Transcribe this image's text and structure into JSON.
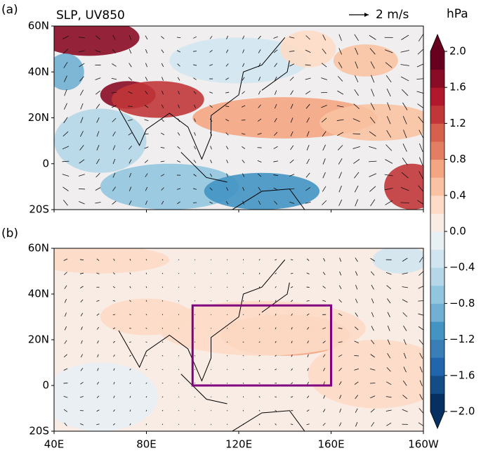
{
  "panels": [
    {
      "label": "(a)",
      "title": "SLP, UV850",
      "reference_vector": "2 m/s"
    },
    {
      "label": "(b)",
      "box": {
        "lon": [
          100,
          160
        ],
        "lat": [
          0,
          35
        ],
        "color": "#800080"
      }
    }
  ],
  "xlim": [
    40,
    200
  ],
  "ylim": [
    -20,
    60
  ],
  "lon_ticks": [
    {
      "value": 40,
      "label": "40E"
    },
    {
      "value": 80,
      "label": "80E"
    },
    {
      "value": 120,
      "label": "120E"
    },
    {
      "value": 160,
      "label": "160E"
    },
    {
      "value": 200,
      "label": "160W"
    }
  ],
  "lat_ticks": [
    {
      "value": 60,
      "label": "60N"
    },
    {
      "value": 40,
      "label": "40N"
    },
    {
      "value": 20,
      "label": "20N"
    },
    0,
    {
      "value": -20,
      "label": "20S"
    }
  ],
  "colorbar": {
    "unit": "hPa",
    "lim": [
      -2,
      2
    ],
    "ticks": [
      {
        "value": 2,
        "label": "2.0"
      },
      1.6,
      1.2,
      0.8,
      0.4,
      {
        "value": 0,
        "label": "0.0"
      },
      {
        "value": -0.4,
        "label": "−0.4"
      },
      {
        "value": -0.8,
        "label": "−0.8"
      },
      {
        "value": -1.2,
        "label": "−1.2"
      },
      {
        "value": -1.6,
        "label": "−1.6"
      },
      {
        "value": -2,
        "label": "−2.0"
      }
    ],
    "colors": [
      "#053061",
      "#134c87",
      "#2166ac",
      "#3a7eb8",
      "#4393c3",
      "#71b0d3",
      "#92c5de",
      "#b5d7e8",
      "#d1e5f0",
      "#e8f0f4",
      "#f9ece5",
      "#fddbc7",
      "#f9c2a2",
      "#f4a582",
      "#e27e62",
      "#d6604d",
      "#c13639",
      "#b2182b",
      "#8a0b25",
      "#67001f"
    ]
  }
}
